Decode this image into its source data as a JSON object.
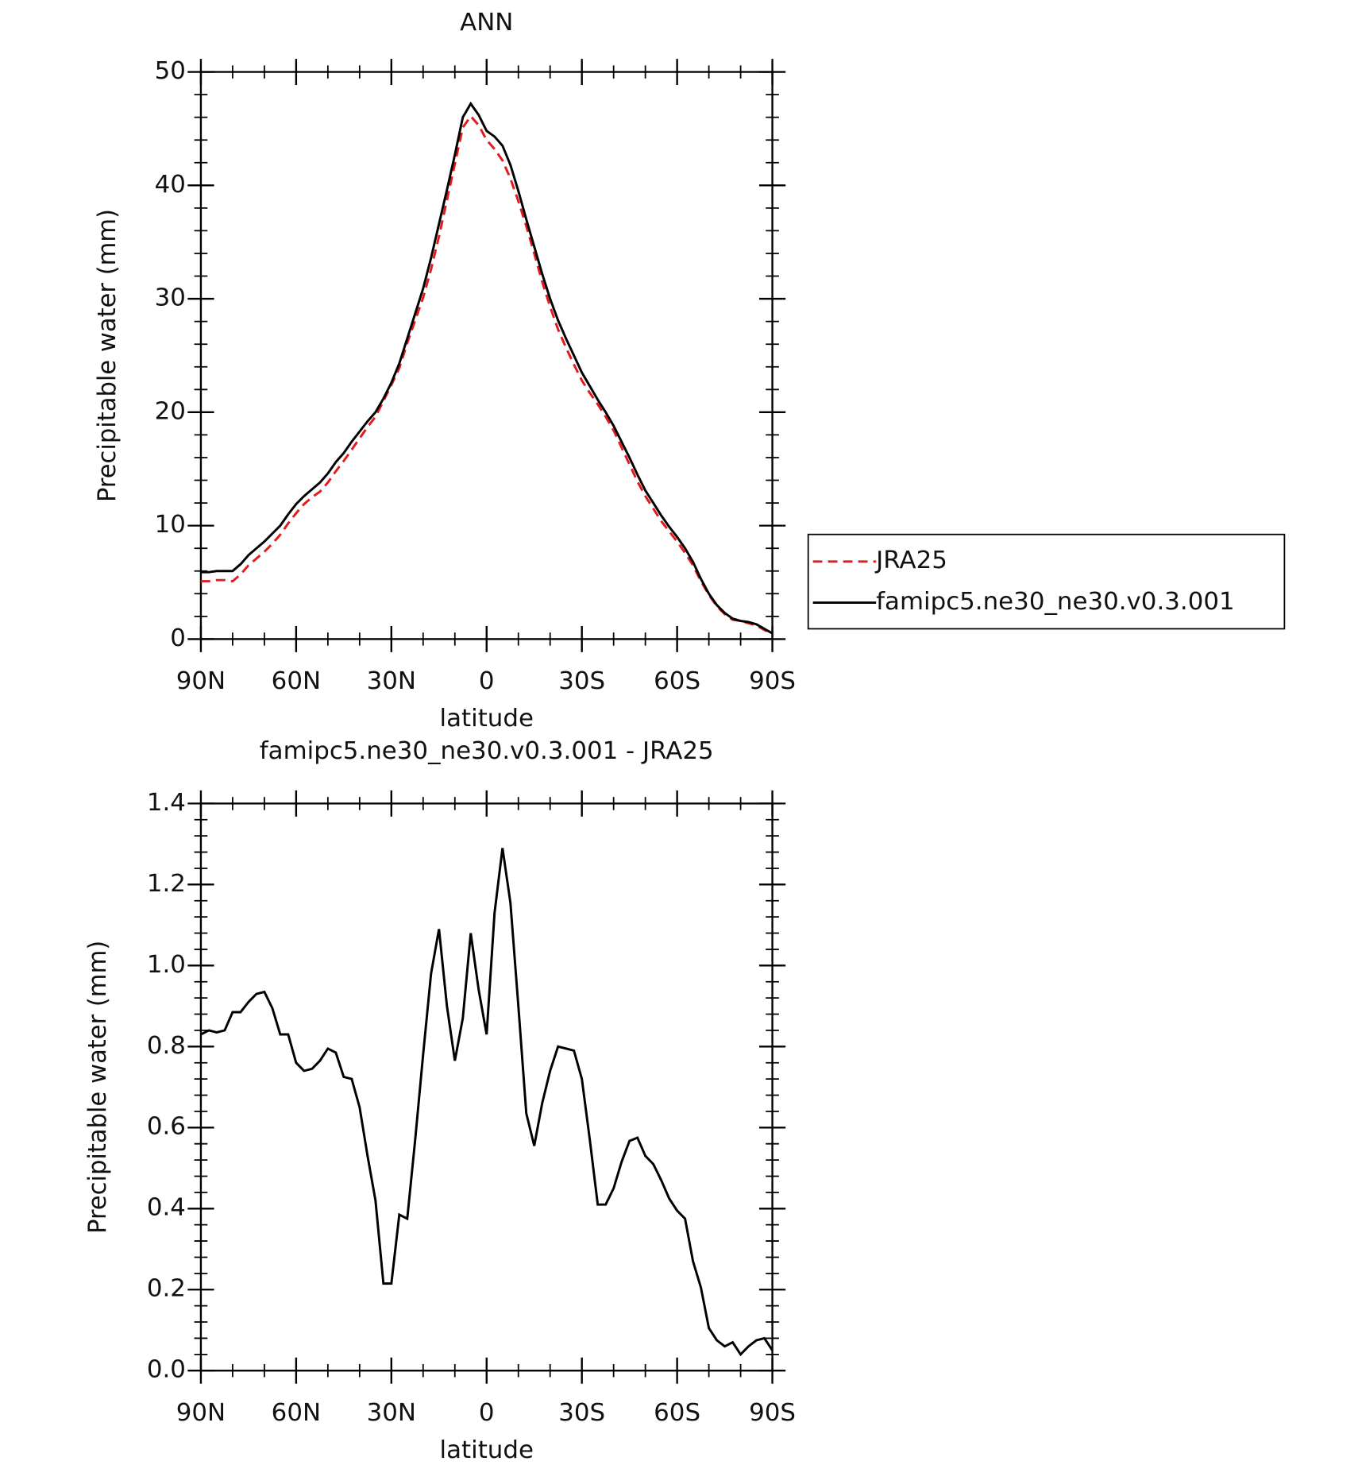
{
  "chart_data": [
    {
      "type": "line",
      "title": "ANN",
      "xlabel": "latitude",
      "ylabel": "Precipitable water (mm)",
      "x": [
        90,
        87.5,
        85,
        82.5,
        80,
        77.5,
        75,
        72.5,
        70,
        67.5,
        65,
        62.5,
        60,
        57.5,
        55,
        52.5,
        50,
        47.5,
        45,
        42.5,
        40,
        37.5,
        35,
        32.5,
        30,
        27.5,
        25,
        22.5,
        20,
        17.5,
        15,
        12.5,
        10,
        7.5,
        5,
        2.5,
        0,
        -2.5,
        -5,
        -7.5,
        -10,
        -12.5,
        -15,
        -17.5,
        -20,
        -22.5,
        -25,
        -27.5,
        -30,
        -32.5,
        -35,
        -37.5,
        -40,
        -42.5,
        -45,
        -47.5,
        -50,
        -52.5,
        -55,
        -57.5,
        -60,
        -62.5,
        -65,
        -67.5,
        -70,
        -72.5,
        -75,
        -77.5,
        -80,
        -82.5,
        -85,
        -87.5,
        -90
      ],
      "series": [
        {
          "name": "JRA25",
          "color": "#e41a1c",
          "linestyle": "dashed",
          "values": [
            5.1,
            5.1,
            5.2,
            5.2,
            5.1,
            5.7,
            6.5,
            7.1,
            7.7,
            8.4,
            9.2,
            10.2,
            11.1,
            11.9,
            12.5,
            13.0,
            13.8,
            14.8,
            15.7,
            16.7,
            17.7,
            18.7,
            19.6,
            21.0,
            22.4,
            23.9,
            26.1,
            28.1,
            30.1,
            32.6,
            35.5,
            38.7,
            41.9,
            45.1,
            46.1,
            45.3,
            44.0,
            43.2,
            42.2,
            40.6,
            38.6,
            36.4,
            34.0,
            31.5,
            29.3,
            27.3,
            25.7,
            24.2,
            22.8,
            21.7,
            20.7,
            19.6,
            18.4,
            16.9,
            15.4,
            13.9,
            12.6,
            11.5,
            10.4,
            9.5,
            8.6,
            7.6,
            6.5,
            5.1,
            3.9,
            2.9,
            2.2,
            1.7,
            1.6,
            1.4,
            1.2,
            0.8,
            0.5
          ]
        },
        {
          "name": "famipc5.ne30_ne30.v0.3.001",
          "color": "#000000",
          "linestyle": "solid",
          "values": [
            5.9,
            5.9,
            6.0,
            6.0,
            6.0,
            6.6,
            7.4,
            8.0,
            8.6,
            9.3,
            10.0,
            11.0,
            11.9,
            12.6,
            13.2,
            13.8,
            14.6,
            15.6,
            16.4,
            17.4,
            18.3,
            19.2,
            20.0,
            21.2,
            22.6,
            24.3,
            26.5,
            28.7,
            30.9,
            33.6,
            36.6,
            39.6,
            42.7,
            46.0,
            47.2,
            46.2,
            44.8,
            44.3,
            43.5,
            41.8,
            39.5,
            37.0,
            34.6,
            32.2,
            30.0,
            28.1,
            26.5,
            25.0,
            23.5,
            22.3,
            21.1,
            20.0,
            18.8,
            17.4,
            16.0,
            14.5,
            13.1,
            12.0,
            10.9,
            9.9,
            9.0,
            8.0,
            6.8,
            5.3,
            4.0,
            3.0,
            2.3,
            1.8,
            1.6,
            1.5,
            1.3,
            0.9,
            0.5
          ]
        }
      ],
      "xlim": [
        90,
        -90
      ],
      "xticks": [
        {
          "value": 90,
          "label": "90N"
        },
        {
          "value": 60,
          "label": "60N"
        },
        {
          "value": 30,
          "label": "30N"
        },
        0,
        {
          "value": -30,
          "label": "30S"
        },
        {
          "value": -60,
          "label": "60S"
        },
        {
          "value": -90,
          "label": "90S"
        }
      ],
      "ylim": [
        0,
        50
      ],
      "yticks": [
        0,
        10,
        20,
        30,
        40,
        50
      ],
      "legend": "right"
    },
    {
      "type": "line",
      "title": "famipc5.ne30_ne30.v0.3.001 - JRA25",
      "xlabel": "latitude",
      "ylabel": "Precipitable water (mm)",
      "x": [
        90,
        87.5,
        85,
        82.5,
        80,
        77.5,
        75,
        72.5,
        70,
        67.5,
        65,
        62.5,
        60,
        57.5,
        55,
        52.5,
        50,
        47.5,
        45,
        42.5,
        40,
        37.5,
        35,
        32.5,
        30,
        27.5,
        25,
        22.5,
        20,
        17.5,
        15,
        12.5,
        10,
        7.5,
        5,
        2.5,
        0,
        -2.5,
        -5,
        -7.5,
        -10,
        -12.5,
        -15,
        -17.5,
        -20,
        -22.5,
        -25,
        -27.5,
        -30,
        -32.5,
        -35,
        -37.5,
        -40,
        -42.5,
        -45,
        -47.5,
        -50,
        -52.5,
        -55,
        -57.5,
        -60,
        -62.5,
        -65,
        -67.5,
        -70,
        -72.5,
        -75,
        -77.5,
        -80,
        -82.5,
        -85,
        -87.5,
        -90
      ],
      "series": [
        {
          "color": "#000000",
          "linestyle": "solid",
          "values": [
            0.83,
            0.84,
            0.835,
            0.84,
            0.885,
            0.885,
            0.91,
            0.93,
            0.935,
            0.895,
            0.83,
            0.83,
            0.76,
            0.74,
            0.745,
            0.765,
            0.795,
            0.785,
            0.725,
            0.72,
            0.65,
            0.53,
            0.42,
            0.215,
            0.215,
            0.385,
            0.375,
            0.57,
            0.78,
            0.98,
            1.09,
            0.9,
            0.765,
            0.87,
            1.08,
            0.94,
            0.83,
            1.13,
            1.29,
            1.155,
            0.9,
            0.635,
            0.555,
            0.66,
            0.74,
            0.8,
            0.795,
            0.79,
            0.72,
            0.57,
            0.41,
            0.41,
            0.45,
            0.515,
            0.567,
            0.575,
            0.53,
            0.51,
            0.47,
            0.425,
            0.395,
            0.375,
            0.27,
            0.205,
            0.105,
            0.075,
            0.06,
            0.07,
            0.04,
            0.06,
            0.075,
            0.08,
            0.05
          ]
        }
      ],
      "xlim": [
        90,
        -90
      ],
      "xticks": [
        {
          "value": 90,
          "label": "90N"
        },
        {
          "value": 60,
          "label": "60N"
        },
        {
          "value": 30,
          "label": "30N"
        },
        0,
        {
          "value": -30,
          "label": "30S"
        },
        {
          "value": -60,
          "label": "60S"
        },
        {
          "value": -90,
          "label": "90S"
        }
      ],
      "ylim": [
        0,
        1.4
      ],
      "yticks": [
        {
          "value": 0,
          "label": "0.0"
        },
        0.2,
        0.4,
        0.6,
        0.8,
        {
          "value": 1,
          "label": "1.0"
        },
        1.2,
        1.4
      ]
    }
  ]
}
